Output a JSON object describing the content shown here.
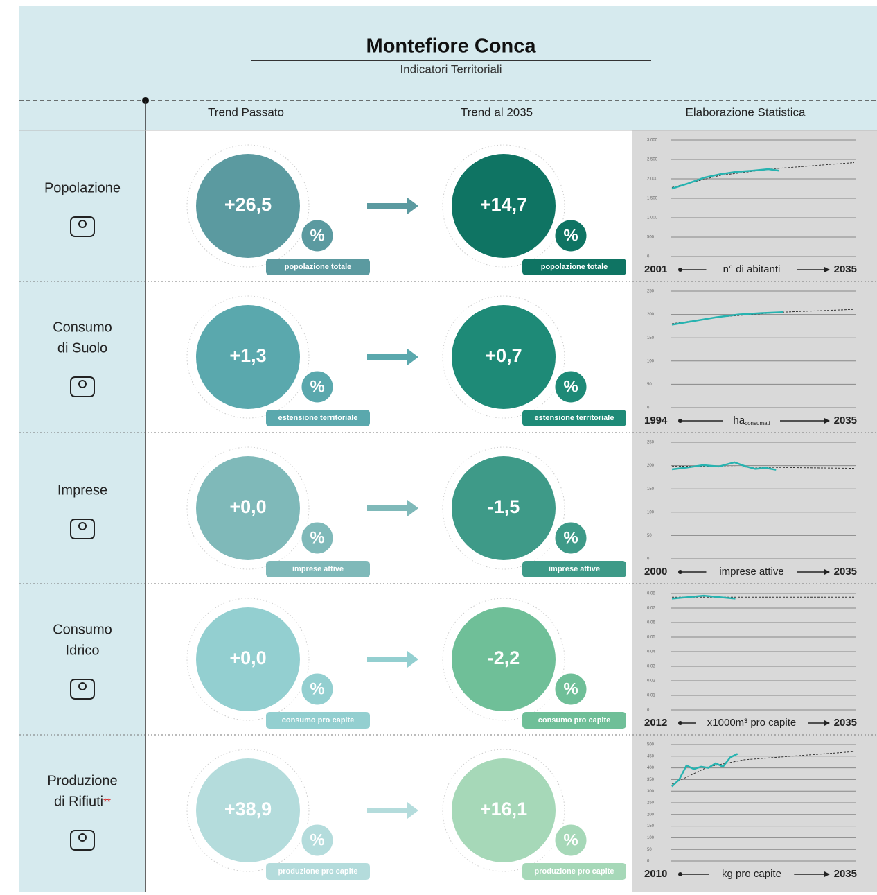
{
  "header": {
    "title": "Montefiore Conca",
    "subtitle": "Indicatori Territoriali"
  },
  "columns": [
    "Trend Passato",
    "Trend al 2035",
    "Elaborazione Statistica"
  ],
  "rows": [
    {
      "label_lines": [
        "Popolazione"
      ],
      "past": {
        "value": "+26,5",
        "unit": "%",
        "caption": "popolazione totale",
        "color": "#5b9aa0"
      },
      "future": {
        "value": "+14,7",
        "unit": "%",
        "caption": "popolazione totale",
        "color": "#0f7463"
      },
      "chart": {
        "xlim": [
          2001,
          2035
        ],
        "unit": "n° di abitanti",
        "ylim": [
          0,
          3000
        ],
        "yticks": [
          0,
          {
            "value": 500,
            "label": "500"
          },
          {
            "value": 1000,
            "label": "1.000"
          },
          {
            "value": 1500,
            "label": "1.500"
          },
          {
            "value": 2000,
            "label": "2.000"
          },
          {
            "value": 2500,
            "label": "2.500"
          },
          {
            "value": 3000,
            "label": "3.000"
          }
        ],
        "series": {
          "x": [
            2001,
            2004,
            2007,
            2010,
            2013,
            2016,
            2019,
            2021
          ],
          "values": [
            1750,
            1880,
            2030,
            2120,
            2180,
            2210,
            2250,
            2210
          ]
        },
        "trend": {
          "x": [
            2001,
            2010,
            2020,
            2035
          ],
          "values": [
            1780,
            2090,
            2260,
            2420
          ]
        }
      }
    },
    {
      "label_lines": [
        "Consumo",
        "di Suolo"
      ],
      "past": {
        "value": "+1,3",
        "unit": "%",
        "caption": "estensione territoriale",
        "color": "#5aa8ad"
      },
      "future": {
        "value": "+0,7",
        "unit": "%",
        "caption": "estensione territoriale",
        "color": "#1e8a77"
      },
      "chart": {
        "xlim": [
          1994,
          2035
        ],
        "unit": "ha",
        "unit_sub": "consumati",
        "ylim": [
          0,
          250
        ],
        "yticks": [
          0,
          50,
          100,
          150,
          200,
          250
        ],
        "series": {
          "x": [
            1994,
            1999,
            2004,
            2009,
            2014,
            2019
          ],
          "values": [
            178,
            186,
            194,
            200,
            203,
            205
          ]
        },
        "trend": {
          "x": [
            1994,
            2005,
            2019,
            2035
          ],
          "values": [
            180,
            195,
            205,
            211
          ]
        }
      }
    },
    {
      "label_lines": [
        "Imprese"
      ],
      "past": {
        "value": "+0,0",
        "unit": "%",
        "caption": "imprese attive",
        "color": "#7fb9b9"
      },
      "future": {
        "value": "-1,5",
        "unit": "%",
        "caption": "imprese attive",
        "color": "#3e9a88"
      },
      "chart": {
        "xlim": [
          2000,
          2035
        ],
        "unit": "imprese attive",
        "ylim": [
          0,
          250
        ],
        "yticks": [
          0,
          50,
          100,
          150,
          200,
          250
        ],
        "series": {
          "x": [
            2000,
            2003,
            2006,
            2009,
            2012,
            2014,
            2016,
            2018,
            2020
          ],
          "values": [
            192,
            196,
            201,
            198,
            207,
            199,
            193,
            195,
            191
          ]
        },
        "trend": {
          "x": [
            2000,
            2035
          ],
          "values": [
            199,
            194
          ]
        }
      }
    },
    {
      "label_lines": [
        "Consumo",
        "Idrico"
      ],
      "past": {
        "value": "+0,0",
        "unit": "%",
        "caption": "consumo pro capite",
        "color": "#93cfd0"
      },
      "future": {
        "value": "-2,2",
        "unit": "%",
        "caption": "consumo pro capite",
        "color": "#6fbf98"
      },
      "chart": {
        "xlim": [
          2012,
          2035
        ],
        "unit": "x1000m³ pro capite",
        "ylim": [
          0,
          0.08
        ],
        "yticks": [
          0,
          {
            "value": 0.01,
            "label": "0,01"
          },
          {
            "value": 0.02,
            "label": "0,02"
          },
          {
            "value": 0.03,
            "label": "0,03"
          },
          {
            "value": 0.04,
            "label": "0,04"
          },
          {
            "value": 0.05,
            "label": "0,05"
          },
          {
            "value": 0.06,
            "label": "0,06"
          },
          {
            "value": 0.07,
            "label": "0,07"
          },
          {
            "value": 0.08,
            "label": "0,08"
          }
        ],
        "series": {
          "x": [
            2012,
            2014,
            2016,
            2018,
            2020
          ],
          "values": [
            0.0765,
            0.0775,
            0.0785,
            0.0775,
            0.0765
          ]
        },
        "trend": {
          "x": [
            2012,
            2035
          ],
          "values": [
            0.0775,
            0.0775
          ]
        }
      }
    },
    {
      "label_lines": [
        "Produzione",
        "di Rifiuti"
      ],
      "label_mark": "**",
      "past": {
        "value": "+38,9",
        "unit": "%",
        "caption": "produzione pro capite",
        "color": "#b4dcdc"
      },
      "future": {
        "value": "+16,1",
        "unit": "%",
        "caption": "produzione pro capite",
        "color": "#a6d8b8"
      },
      "chart": {
        "xlim": [
          2010,
          2035
        ],
        "unit": "kg pro capite",
        "ylim": [
          0,
          500
        ],
        "yticks": [
          0,
          50,
          100,
          150,
          200,
          250,
          300,
          350,
          400,
          450,
          500
        ],
        "series": {
          "x": [
            2010,
            2011,
            2012,
            2013,
            2014,
            2015,
            2016,
            2017,
            2018,
            2019
          ],
          "values": [
            320,
            350,
            410,
            395,
            405,
            400,
            420,
            405,
            445,
            460
          ]
        },
        "trend": {
          "x": [
            2010,
            2015,
            2020,
            2035
          ],
          "values": [
            330,
            405,
            435,
            470
          ]
        }
      }
    }
  ]
}
